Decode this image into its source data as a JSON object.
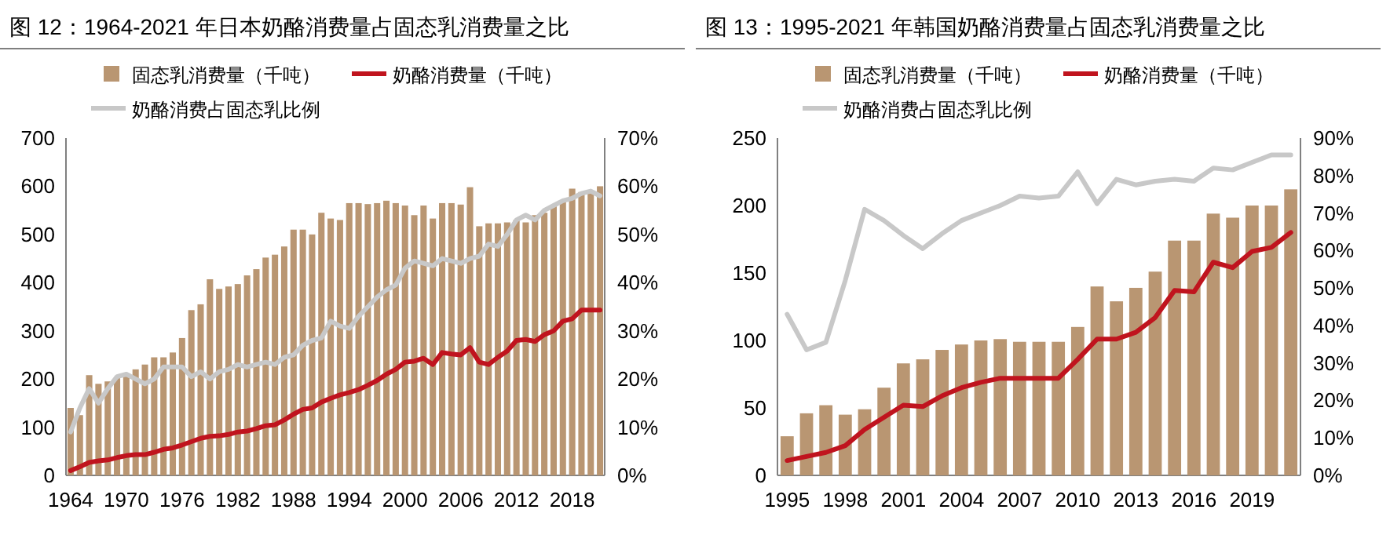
{
  "chart_data": [
    {
      "type": "bar",
      "title": "图 12：1964-2021 年日本奶酪消费量占固态乳消费量之比",
      "legend": "top left",
      "x": [
        1964,
        1965,
        1966,
        1967,
        1968,
        1969,
        1970,
        1971,
        1972,
        1973,
        1974,
        1975,
        1976,
        1977,
        1978,
        1979,
        1980,
        1981,
        1982,
        1983,
        1984,
        1985,
        1986,
        1987,
        1988,
        1989,
        1990,
        1991,
        1992,
        1993,
        1994,
        1995,
        1996,
        1997,
        1998,
        1999,
        2000,
        2001,
        2002,
        2003,
        2004,
        2005,
        2006,
        2007,
        2008,
        2009,
        2010,
        2011,
        2012,
        2013,
        2014,
        2015,
        2016,
        2017,
        2018,
        2019,
        2020,
        2021
      ],
      "xlim": [
        1963.5,
        2021.5
      ],
      "xticks": [
        1964,
        1970,
        1976,
        1982,
        1988,
        1994,
        2000,
        2006,
        2012,
        2018
      ],
      "ylim": [
        0,
        700
      ],
      "yticks": [
        0,
        100,
        200,
        300,
        400,
        500,
        600,
        700
      ],
      "y2lim": [
        0,
        70
      ],
      "y2ticks": [
        {
          "value": 0,
          "label": "0%"
        },
        {
          "value": 10,
          "label": "10%"
        },
        {
          "value": 20,
          "label": "20%"
        },
        {
          "value": 30,
          "label": "30%"
        },
        {
          "value": 40,
          "label": "40%"
        },
        {
          "value": 50,
          "label": "50%"
        },
        {
          "value": 60,
          "label": "60%"
        },
        {
          "value": 70,
          "label": "70%"
        }
      ],
      "series": [
        {
          "name": "固态乳消费量（千吨）",
          "color": "#b99672",
          "values": [
            140,
            125,
            208,
            190,
            195,
            205,
            210,
            220,
            230,
            245,
            245,
            255,
            285,
            343,
            355,
            407,
            387,
            392,
            397,
            415,
            428,
            452,
            458,
            475,
            510,
            510,
            500,
            545,
            533,
            530,
            565,
            565,
            563,
            565,
            570,
            565,
            560,
            540,
            560,
            533,
            565,
            565,
            562,
            598,
            517,
            523,
            523,
            525,
            530,
            525,
            540,
            545,
            560,
            570,
            595,
            588,
            585,
            600
          ]
        },
        {
          "name": "奶酪消费量（千吨）",
          "type": "line",
          "color": "#c0141e",
          "values": [
            10,
            18,
            27,
            30,
            32,
            37,
            41,
            43,
            43,
            48,
            54,
            57,
            63,
            70,
            77,
            81,
            82,
            85,
            90,
            92,
            97,
            103,
            105,
            115,
            127,
            137,
            140,
            152,
            160,
            167,
            172,
            178,
            187,
            197,
            210,
            220,
            235,
            237,
            243,
            230,
            255,
            252,
            250,
            265,
            235,
            230,
            245,
            258,
            280,
            282,
            278,
            292,
            300,
            320,
            325,
            343,
            343,
            343
          ]
        },
        {
          "name": "奶酪消费占固态乳比例",
          "type": "line",
          "axis": "y2",
          "color": "#c8c8c8",
          "values": [
            9,
            14,
            18,
            15,
            18,
            20.5,
            21,
            20,
            19,
            20,
            22.5,
            22.5,
            22.5,
            20.5,
            21.5,
            20,
            21.5,
            22,
            23,
            22.5,
            23,
            23.5,
            23,
            24.5,
            25,
            27,
            28,
            28.5,
            32,
            31,
            30.5,
            33,
            35,
            37,
            38.5,
            39.5,
            43,
            44.5,
            44,
            43.5,
            45,
            44.5,
            44,
            45,
            45.5,
            48,
            47.5,
            50,
            53,
            54,
            53,
            55,
            56,
            57,
            57.5,
            58.5,
            59,
            58
          ]
        }
      ]
    },
    {
      "type": "bar",
      "title": "图 13：1995-2021 年韩国奶酪消费量占固态乳消费量之比",
      "legend": "top left",
      "x": [
        1995,
        1996,
        1997,
        1998,
        1999,
        2000,
        2001,
        2002,
        2003,
        2004,
        2005,
        2006,
        2007,
        2008,
        2009,
        2010,
        2011,
        2012,
        2013,
        2014,
        2015,
        2016,
        2017,
        2018,
        2019,
        2020,
        2021
      ],
      "xlim": [
        1994.5,
        2021.5
      ],
      "xticks": [
        1995,
        1998,
        2001,
        2004,
        2007,
        2010,
        2013,
        2016,
        2019
      ],
      "ylim": [
        0,
        250
      ],
      "yticks": [
        0,
        50,
        100,
        150,
        200,
        250
      ],
      "y2lim": [
        0,
        90
      ],
      "y2ticks": [
        {
          "value": 0,
          "label": "0%"
        },
        {
          "value": 10,
          "label": "10%"
        },
        {
          "value": 20,
          "label": "20%"
        },
        {
          "value": 30,
          "label": "30%"
        },
        {
          "value": 40,
          "label": "40%"
        },
        {
          "value": 50,
          "label": "50%"
        },
        {
          "value": 60,
          "label": "60%"
        },
        {
          "value": 70,
          "label": "70%"
        },
        {
          "value": 80,
          "label": "80%"
        },
        {
          "value": 90,
          "label": "90%"
        }
      ],
      "series": [
        {
          "name": "固态乳消费量（千吨）",
          "color": "#b99672",
          "values": [
            29,
            46,
            52,
            45,
            49,
            65,
            83,
            86,
            93,
            97,
            100,
            101,
            99,
            99,
            99,
            110,
            140,
            129,
            139,
            151,
            174,
            174,
            194,
            191,
            200,
            200,
            212
          ]
        },
        {
          "name": "奶酪消费量（千吨）",
          "type": "line",
          "color": "#c0141e",
          "values": [
            11,
            14,
            17,
            22,
            34,
            43,
            52,
            51,
            59,
            65,
            69,
            72,
            72,
            72,
            72,
            86,
            101,
            101,
            106,
            117,
            137,
            136,
            158,
            154,
            166,
            169,
            180
          ]
        },
        {
          "name": "奶酪消费占固态乳比例",
          "type": "line",
          "axis": "y2",
          "color": "#c8c8c8",
          "values": [
            43,
            33.5,
            35.5,
            52,
            71,
            68,
            64,
            60.5,
            64.5,
            68,
            70,
            72,
            74.5,
            74,
            74.5,
            81,
            72.5,
            79,
            77.5,
            78.5,
            79,
            78.5,
            82,
            81.5,
            83.5,
            85.5,
            85.5
          ]
        }
      ]
    }
  ]
}
